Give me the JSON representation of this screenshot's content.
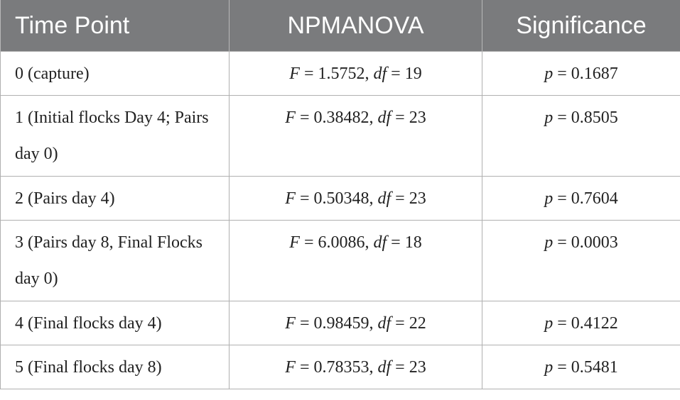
{
  "headers": [
    "Time Point",
    "NPMANOVA",
    "Significance"
  ],
  "rows": [
    {
      "time_point": "0 (capture)",
      "F": "1.5752",
      "df": "19",
      "p": "0.1687"
    },
    {
      "time_point": "1 (Initial flocks Day 4; Pairs day 0)",
      "F": "0.38482",
      "df": "23",
      "p": "0.8505"
    },
    {
      "time_point": "2 (Pairs day 4)",
      "F": "0.50348",
      "df": "23",
      "p": "0.7604"
    },
    {
      "time_point": "3 (Pairs day 8, Final Flocks day 0)",
      "F": "6.0086",
      "df": "18",
      "p": "0.0003"
    },
    {
      "time_point": "4 (Final flocks day 4)",
      "F": "0.98459",
      "df": "22",
      "p": "0.4122"
    },
    {
      "time_point": "5 (Final flocks day 8)",
      "F": "0.78353",
      "df": "23",
      "p": "0.5481"
    }
  ],
  "symbols": {
    "F": "F",
    "df": "df",
    "p": "p",
    "eq": " = ",
    "sep": ", "
  }
}
